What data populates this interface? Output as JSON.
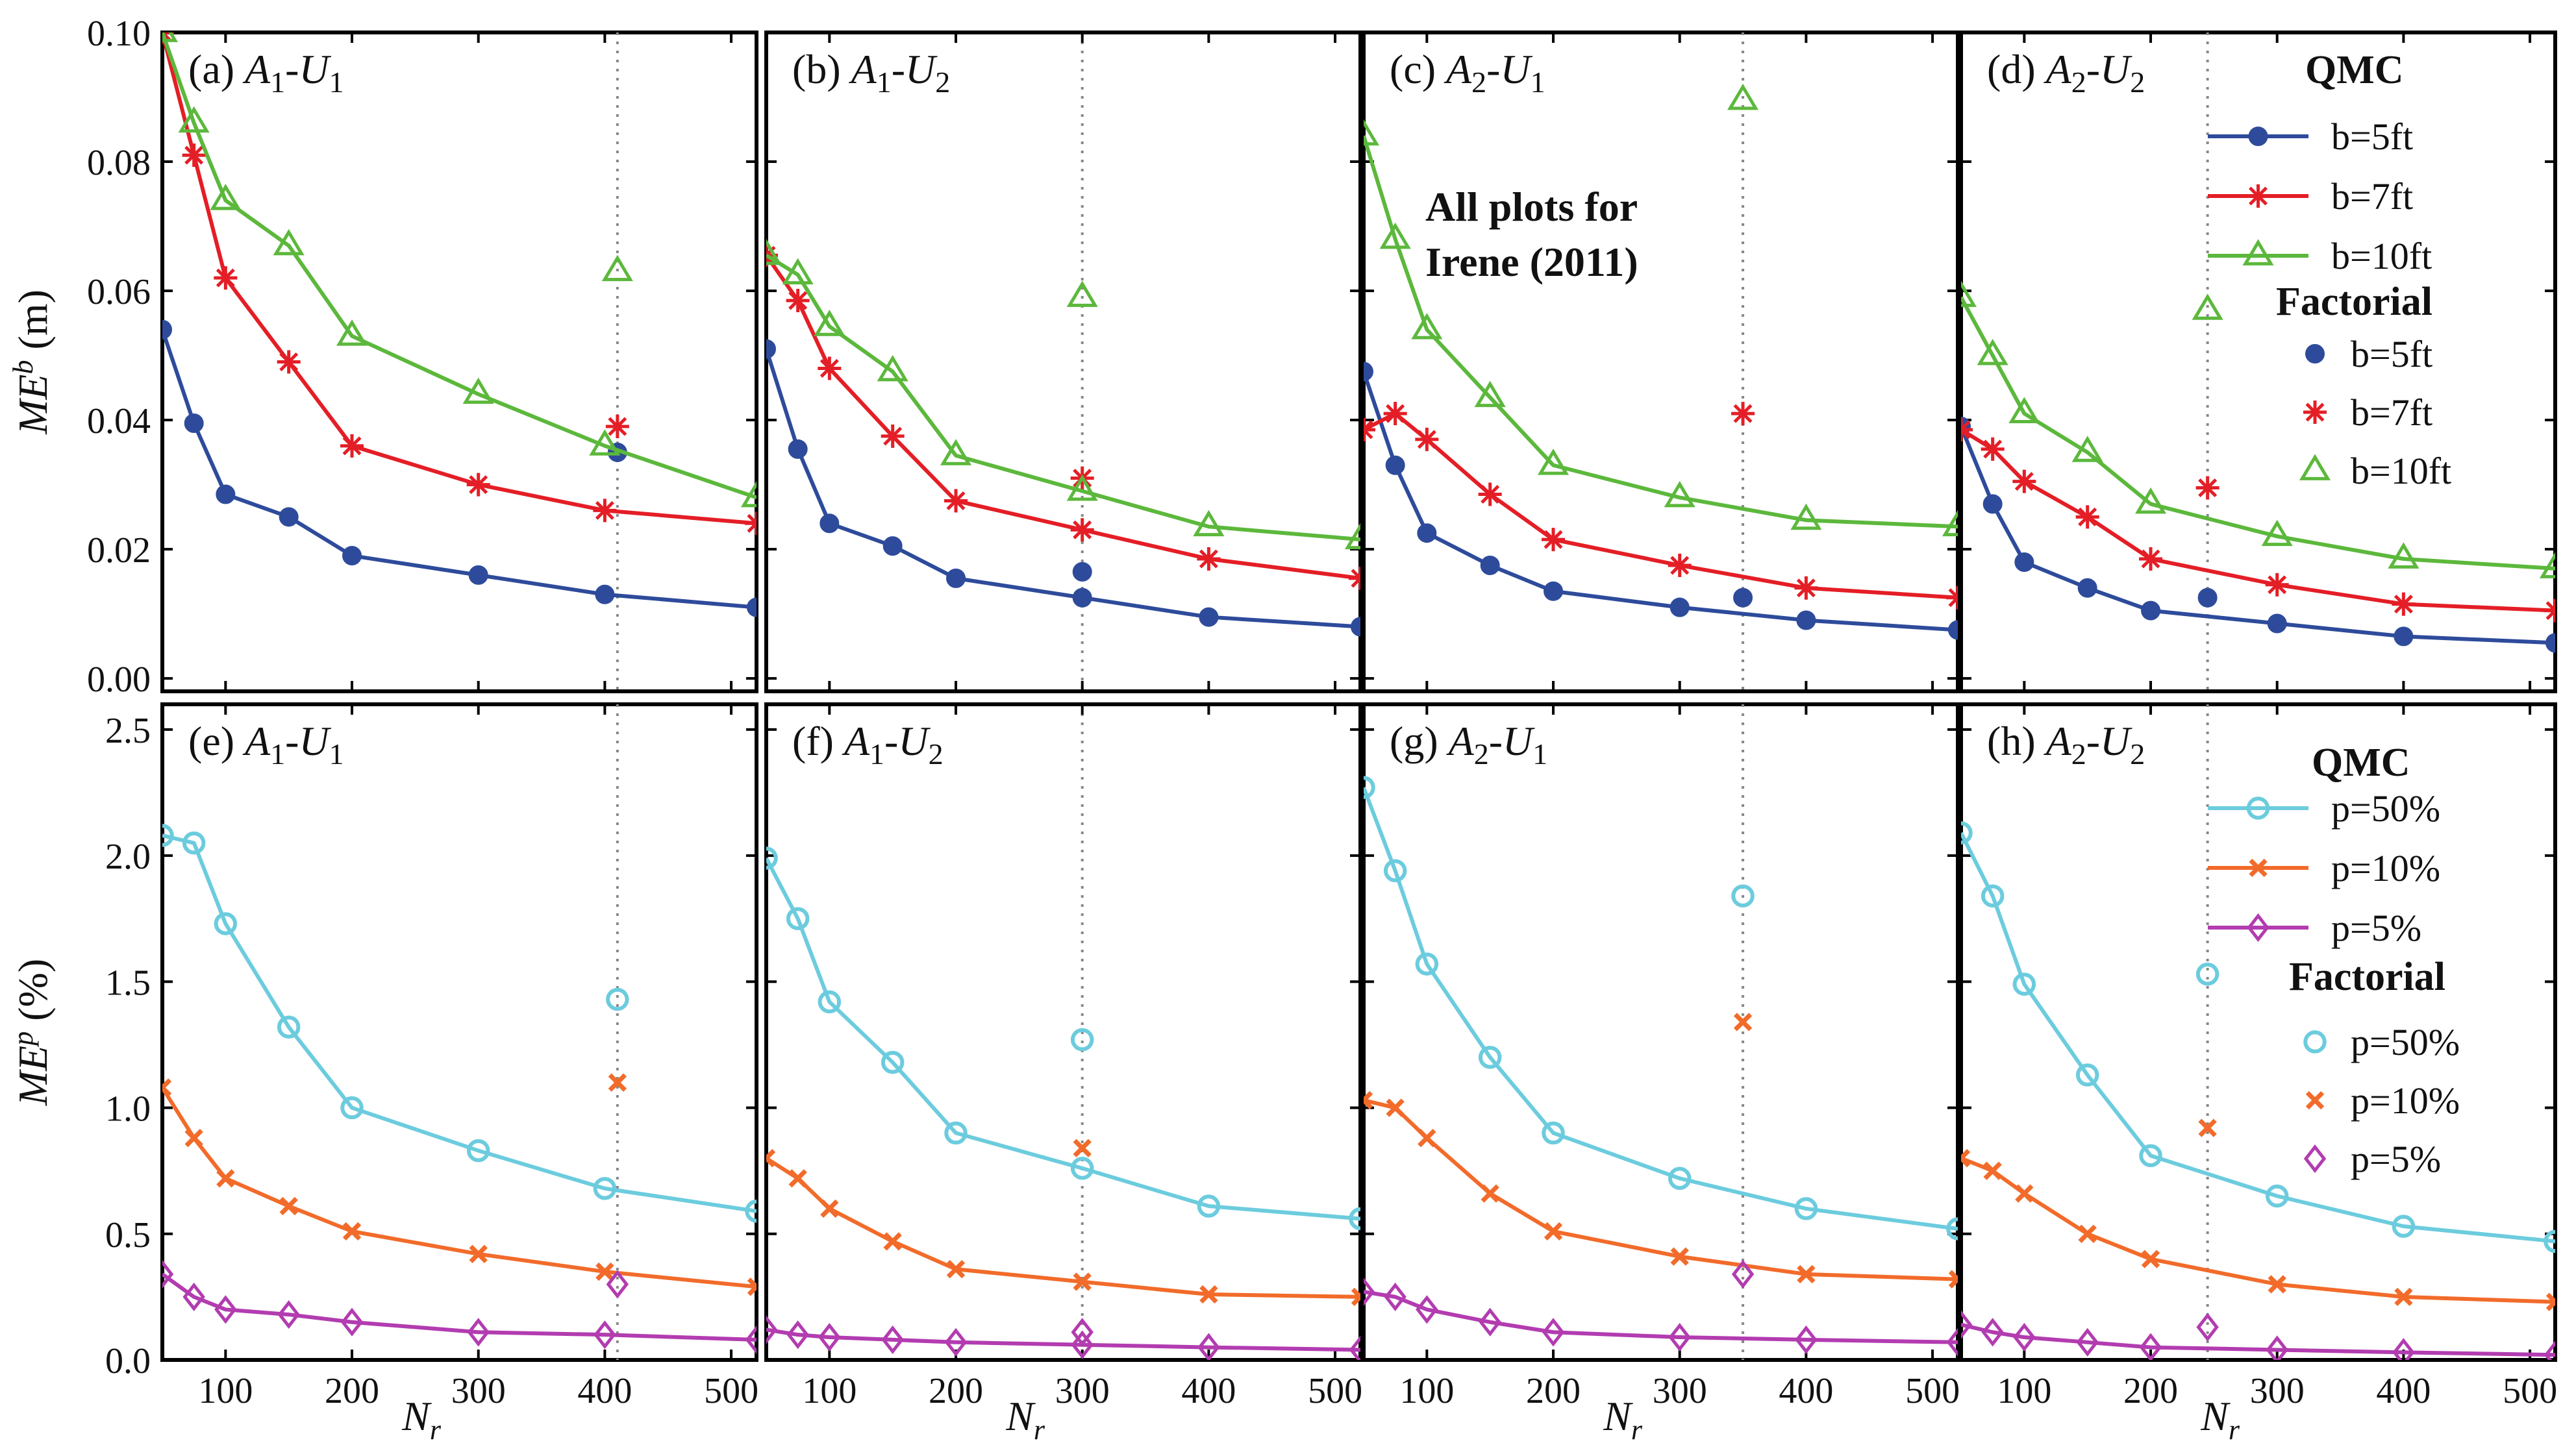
{
  "figure": {
    "note_line1": "All plots for",
    "note_line2": "Irene (2011)",
    "legend_top": {
      "qmc_title": "QMC",
      "factorial_title": "Factorial",
      "qmc_entries": [
        "b=5ft",
        "b=7ft",
        "b=10ft"
      ],
      "factorial_entries": [
        "b=5ft",
        "b=7ft",
        "b=10ft"
      ]
    },
    "legend_bottom": {
      "qmc_title": "QMC",
      "factorial_title": "Factorial",
      "qmc_entries": [
        "p=50%",
        "p=10%",
        "p=5%"
      ],
      "factorial_entries": [
        "p=50%",
        "p=10%",
        "p=5%"
      ]
    }
  },
  "colors": {
    "b5": "#2E4B9B",
    "b7": "#E41E26",
    "b10": "#5CB83C",
    "p50": "#6CCCDE",
    "p10": "#F26B2A",
    "p5": "#B23CB0"
  },
  "chart_data": [
    {
      "type": "line",
      "id": "a",
      "panel_label": "(a)",
      "case": "A1-U1",
      "xlabel": "",
      "ylabel": "MEb (m)",
      "xlim": [
        50,
        520
      ],
      "ylim": [
        -0.002,
        0.1
      ],
      "x": [
        50,
        75,
        100,
        150,
        200,
        300,
        400,
        520
      ],
      "x_ticks": [],
      "y_ticks": [
        "0.00",
        "0.02",
        "0.04",
        "0.06",
        "0.08",
        "0.10"
      ],
      "factorial_x": 410,
      "series": [
        {
          "name": "b=5ft",
          "key": "b5",
          "marker": "circle",
          "values": [
            0.054,
            0.0395,
            0.0285,
            0.025,
            0.019,
            0.016,
            0.013,
            0.011
          ],
          "factorial": 0.035
        },
        {
          "name": "b=7ft",
          "key": "b7",
          "marker": "asterisk",
          "values": [
            0.1,
            0.081,
            0.062,
            0.049,
            0.036,
            0.03,
            0.026,
            0.024
          ],
          "factorial": 0.039
        },
        {
          "name": "b=10ft",
          "key": "b10",
          "marker": "triangle",
          "values": [
            0.1,
            0.086,
            0.074,
            0.067,
            0.053,
            0.044,
            0.036,
            0.028
          ],
          "factorial": 0.063
        }
      ]
    },
    {
      "type": "line",
      "id": "b",
      "panel_label": "(b)",
      "case": "A1-U2",
      "xlabel": "",
      "ylabel": "",
      "xlim": [
        50,
        520
      ],
      "ylim": [
        -0.002,
        0.1
      ],
      "x": [
        50,
        75,
        100,
        150,
        200,
        300,
        400,
        520
      ],
      "x_ticks": [],
      "y_ticks": [],
      "factorial_x": 300,
      "series": [
        {
          "name": "b=5ft",
          "key": "b5",
          "marker": "circle",
          "values": [
            0.051,
            0.0355,
            0.024,
            0.0205,
            0.0155,
            0.0125,
            0.0095,
            0.008
          ],
          "factorial": 0.0165
        },
        {
          "name": "b=7ft",
          "key": "b7",
          "marker": "asterisk",
          "values": [
            0.0655,
            0.0585,
            0.048,
            0.0375,
            0.0275,
            0.023,
            0.0185,
            0.0155
          ],
          "factorial": 0.031
        },
        {
          "name": "b=10ft",
          "key": "b10",
          "marker": "triangle",
          "values": [
            0.0655,
            0.0625,
            0.0545,
            0.0475,
            0.0345,
            0.029,
            0.0235,
            0.0215
          ],
          "factorial": 0.059
        }
      ]
    },
    {
      "type": "line",
      "id": "c",
      "panel_label": "(c)",
      "case": "A2-U1",
      "xlabel": "",
      "ylabel": "",
      "xlim": [
        50,
        520
      ],
      "ylim": [
        -0.002,
        0.1
      ],
      "x": [
        50,
        75,
        100,
        150,
        200,
        300,
        400,
        520
      ],
      "x_ticks": [],
      "y_ticks": [],
      "factorial_x": 350,
      "series": [
        {
          "name": "b=5ft",
          "key": "b5",
          "marker": "circle",
          "values": [
            0.0475,
            0.033,
            0.0225,
            0.0175,
            0.0135,
            0.011,
            0.009,
            0.0075
          ],
          "factorial": 0.0125
        },
        {
          "name": "b=7ft",
          "key": "b7",
          "marker": "asterisk",
          "values": [
            0.0385,
            0.041,
            0.037,
            0.0285,
            0.0215,
            0.0175,
            0.014,
            0.0125
          ],
          "factorial": 0.041
        },
        {
          "name": "b=10ft",
          "key": "b10",
          "marker": "triangle",
          "values": [
            0.084,
            0.068,
            0.054,
            0.0435,
            0.033,
            0.028,
            0.0245,
            0.0235
          ],
          "factorial": 0.0895
        }
      ]
    },
    {
      "type": "line",
      "id": "d",
      "panel_label": "(d)",
      "case": "A2-U2",
      "xlabel": "",
      "ylabel": "",
      "xlim": [
        50,
        520
      ],
      "ylim": [
        -0.002,
        0.1
      ],
      "x": [
        50,
        75,
        100,
        150,
        200,
        300,
        400,
        520
      ],
      "x_ticks": [],
      "y_ticks": [],
      "factorial_x": 245,
      "series": [
        {
          "name": "b=5ft",
          "key": "b5",
          "marker": "circle",
          "values": [
            0.039,
            0.027,
            0.018,
            0.014,
            0.0105,
            0.0085,
            0.0065,
            0.0055
          ],
          "factorial": 0.0125
        },
        {
          "name": "b=7ft",
          "key": "b7",
          "marker": "asterisk",
          "values": [
            0.0385,
            0.0355,
            0.0305,
            0.025,
            0.0185,
            0.0145,
            0.0115,
            0.0105
          ],
          "factorial": 0.0295
        },
        {
          "name": "b=10ft",
          "key": "b10",
          "marker": "triangle",
          "values": [
            0.059,
            0.05,
            0.041,
            0.035,
            0.027,
            0.022,
            0.0185,
            0.017
          ],
          "factorial": 0.057
        }
      ]
    },
    {
      "type": "line",
      "id": "e",
      "panel_label": "(e)",
      "case": "A1-U1",
      "xlabel": "Nr",
      "ylabel": "MEp (%)",
      "xlim": [
        50,
        520
      ],
      "ylim": [
        0,
        2.6
      ],
      "x": [
        50,
        75,
        100,
        150,
        200,
        300,
        400,
        520
      ],
      "x_ticks": [
        "100",
        "200",
        "300",
        "400",
        "500"
      ],
      "y_ticks": [
        "0.0",
        "0.5",
        "1.0",
        "1.5",
        "2.0",
        "2.5"
      ],
      "factorial_x": 410,
      "series": [
        {
          "name": "p=50%",
          "key": "p50",
          "marker": "circle",
          "values": [
            2.08,
            2.05,
            1.73,
            1.32,
            1.0,
            0.83,
            0.68,
            0.59
          ],
          "factorial": 1.43
        },
        {
          "name": "p=10%",
          "key": "p10",
          "marker": "x",
          "values": [
            1.08,
            0.88,
            0.72,
            0.61,
            0.51,
            0.42,
            0.35,
            0.29
          ],
          "factorial": 1.1
        },
        {
          "name": "p=5%",
          "key": "p5",
          "marker": "diamond",
          "values": [
            0.34,
            0.25,
            0.2,
            0.18,
            0.15,
            0.11,
            0.1,
            0.08
          ],
          "factorial": 0.3
        }
      ]
    },
    {
      "type": "line",
      "id": "f",
      "panel_label": "(f)",
      "case": "A1-U2",
      "xlabel": "Nr",
      "ylabel": "",
      "xlim": [
        50,
        520
      ],
      "ylim": [
        0,
        2.6
      ],
      "x": [
        50,
        75,
        100,
        150,
        200,
        300,
        400,
        520
      ],
      "x_ticks": [
        "100",
        "200",
        "300",
        "400",
        "500"
      ],
      "y_ticks": [],
      "factorial_x": 300,
      "series": [
        {
          "name": "p=50%",
          "key": "p50",
          "marker": "circle",
          "values": [
            1.99,
            1.75,
            1.42,
            1.18,
            0.9,
            0.76,
            0.61,
            0.56
          ],
          "factorial": 1.27
        },
        {
          "name": "p=10%",
          "key": "p10",
          "marker": "x",
          "values": [
            0.8,
            0.72,
            0.6,
            0.47,
            0.36,
            0.31,
            0.26,
            0.25
          ],
          "factorial": 0.84
        },
        {
          "name": "p=5%",
          "key": "p5",
          "marker": "diamond",
          "values": [
            0.12,
            0.1,
            0.09,
            0.08,
            0.07,
            0.06,
            0.05,
            0.04
          ],
          "factorial": 0.11
        }
      ]
    },
    {
      "type": "line",
      "id": "g",
      "panel_label": "(g)",
      "case": "A2-U1",
      "xlabel": "Nr",
      "ylabel": "",
      "xlim": [
        50,
        520
      ],
      "ylim": [
        0,
        2.6
      ],
      "x": [
        50,
        75,
        100,
        150,
        200,
        300,
        400,
        520
      ],
      "x_ticks": [
        "100",
        "200",
        "300",
        "400",
        "500"
      ],
      "y_ticks": [],
      "factorial_x": 350,
      "series": [
        {
          "name": "p=50%",
          "key": "p50",
          "marker": "circle",
          "values": [
            2.27,
            1.94,
            1.57,
            1.2,
            0.9,
            0.72,
            0.6,
            0.52
          ],
          "factorial": 1.84
        },
        {
          "name": "p=10%",
          "key": "p10",
          "marker": "x",
          "values": [
            1.03,
            1.0,
            0.88,
            0.66,
            0.51,
            0.41,
            0.34,
            0.32
          ],
          "factorial": 1.34
        },
        {
          "name": "p=5%",
          "key": "p5",
          "marker": "diamond",
          "values": [
            0.27,
            0.25,
            0.2,
            0.15,
            0.11,
            0.09,
            0.08,
            0.07
          ],
          "factorial": 0.34
        }
      ]
    },
    {
      "type": "line",
      "id": "h",
      "panel_label": "(h)",
      "case": "A2-U2",
      "xlabel": "Nr",
      "ylabel": "",
      "xlim": [
        50,
        520
      ],
      "ylim": [
        0,
        2.6
      ],
      "x": [
        50,
        75,
        100,
        150,
        200,
        300,
        400,
        520
      ],
      "x_ticks": [
        "100",
        "200",
        "300",
        "400",
        "500"
      ],
      "y_ticks": [],
      "factorial_x": 245,
      "series": [
        {
          "name": "p=50%",
          "key": "p50",
          "marker": "circle",
          "values": [
            2.09,
            1.84,
            1.49,
            1.13,
            0.81,
            0.65,
            0.53,
            0.47
          ],
          "factorial": 1.53
        },
        {
          "name": "p=10%",
          "key": "p10",
          "marker": "x",
          "values": [
            0.8,
            0.75,
            0.66,
            0.5,
            0.4,
            0.3,
            0.25,
            0.23
          ],
          "factorial": 0.92
        },
        {
          "name": "p=5%",
          "key": "p5",
          "marker": "diamond",
          "values": [
            0.14,
            0.11,
            0.09,
            0.07,
            0.05,
            0.04,
            0.03,
            0.02
          ],
          "factorial": 0.13
        }
      ]
    }
  ]
}
